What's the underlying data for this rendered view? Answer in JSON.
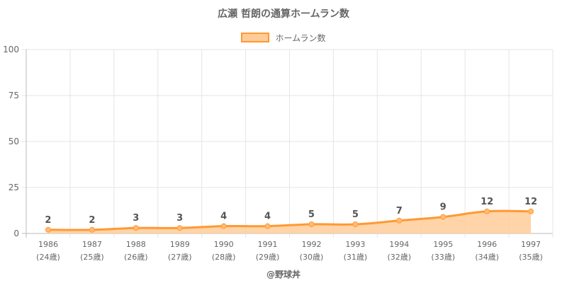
{
  "chart_data": {
    "type": "area",
    "title": "広瀬 哲朗の通算ホームラン数",
    "legend": {
      "label": "ホームラン数",
      "placement": "top"
    },
    "categories": [
      "1986",
      "1987",
      "1988",
      "1989",
      "1990",
      "1991",
      "1992",
      "1993",
      "1994",
      "1995",
      "1996",
      "1997"
    ],
    "age_labels": [
      "(24歳)",
      "(25歳)",
      "(26歳)",
      "(27歳)",
      "(28歳)",
      "(29歳)",
      "(30歳)",
      "(31歳)",
      "(32歳)",
      "(33歳)",
      "(34歳)",
      "(35歳)"
    ],
    "series": [
      {
        "name": "ホームラン数",
        "values": [
          2,
          2,
          3,
          3,
          4,
          4,
          5,
          5,
          7,
          9,
          12,
          12
        ]
      }
    ],
    "ylim": [
      0,
      100
    ],
    "yticks": [
      0,
      25,
      50,
      75,
      100
    ],
    "grid": true,
    "colors": {
      "line": "#ff9933",
      "fill": "#ffcc99",
      "grid": "#e5e5e5"
    }
  },
  "credit": "@野球丼"
}
